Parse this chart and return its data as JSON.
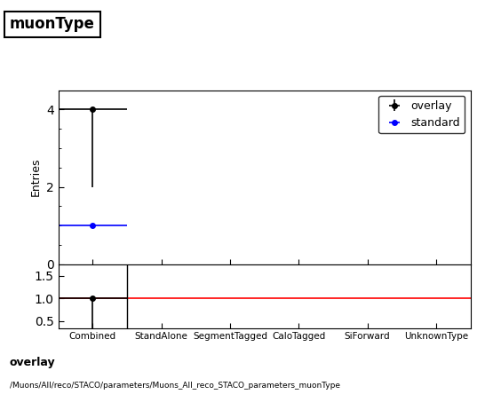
{
  "title": "muonType",
  "categories": [
    "Combined",
    "StandAlone",
    "SegmentTagged",
    "CaloTagged",
    "SiForward",
    "UnknownType"
  ],
  "overlay_values": [
    4,
    0,
    0,
    0,
    0,
    0
  ],
  "overlay_xerr": [
    0.5,
    0.5,
    0.5,
    0.5,
    0.5,
    0.5
  ],
  "overlay_yerr_lo": [
    2.0,
    0,
    0,
    0,
    0,
    0
  ],
  "overlay_yerr_hi": [
    0.0,
    0,
    0,
    0,
    0,
    0
  ],
  "standard_values": [
    1,
    0,
    0,
    0,
    0,
    0
  ],
  "ratio_value": 1.0,
  "ratio_xerr": 0.5,
  "ratio_yerr_lo": 1.0,
  "ratio_yerr_hi": 0.0,
  "main_ylim": [
    0,
    4.5
  ],
  "main_yticks": [
    0,
    2,
    4
  ],
  "ratio_ylim": [
    0.35,
    1.75
  ],
  "ratio_yticks": [
    0.5,
    1.0,
    1.5
  ],
  "ylabel": "Entries",
  "overlay_color": "#000000",
  "standard_color": "#0000ff",
  "ratio_line_color": "#ff0000",
  "ratio_marker_color": "#000000",
  "footer_line1": "overlay",
  "footer_line2": "/Muons/All/reco/STACO/parameters/Muons_All_reco_STACO_parameters_muonType"
}
